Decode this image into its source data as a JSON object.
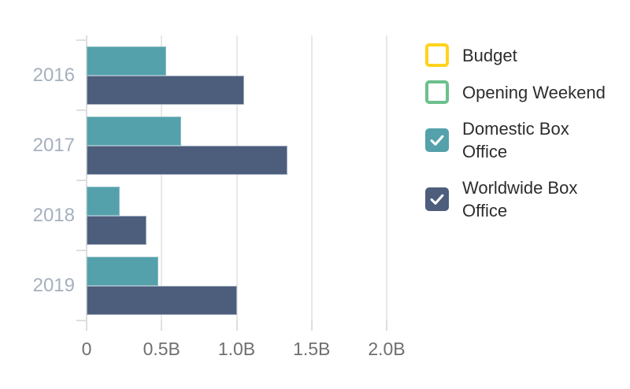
{
  "chart_data": {
    "type": "bar",
    "orientation": "horizontal",
    "categories": [
      "2016",
      "2017",
      "2018",
      "2019"
    ],
    "series": [
      {
        "name": "Budget",
        "color": "#FFD31C",
        "stroke": "#FFD31C",
        "checked": false,
        "values": null
      },
      {
        "name": "Opening Weekend",
        "color": "#6CC08D",
        "stroke": "#6CC08D",
        "checked": false,
        "values": null
      },
      {
        "name": "Domestic Box Office",
        "color": "#54A1AB",
        "stroke": "#8FBFC7",
        "checked": true,
        "values": [
          0.53,
          0.63,
          0.22,
          0.48
        ]
      },
      {
        "name": "Worldwide Box Office",
        "color": "#4D5D7C",
        "stroke": "#A2AFC0",
        "checked": true,
        "values": [
          1.05,
          1.34,
          0.4,
          1.0
        ]
      }
    ],
    "x_ticks": [
      {
        "v": 0,
        "label": "0"
      },
      {
        "v": 0.5,
        "label": "0.5B"
      },
      {
        "v": 1.0,
        "label": "1.0B"
      },
      {
        "v": 1.5,
        "label": "1.5B"
      },
      {
        "v": 2.0,
        "label": "2.0B"
      }
    ],
    "xlim": [
      0,
      2.0
    ],
    "grid": true,
    "legend_position": "right"
  },
  "colors": {
    "background": "#FFFFFF",
    "gridline": "#E8E8EA",
    "axis_line": "#DEDEDE",
    "tick": "#DEDEDE",
    "tick_label": "#6F6F6F",
    "year_label": "#A6B0BE",
    "legend_text": "#2D2D2D",
    "checkmark": "#FFFFFF"
  }
}
